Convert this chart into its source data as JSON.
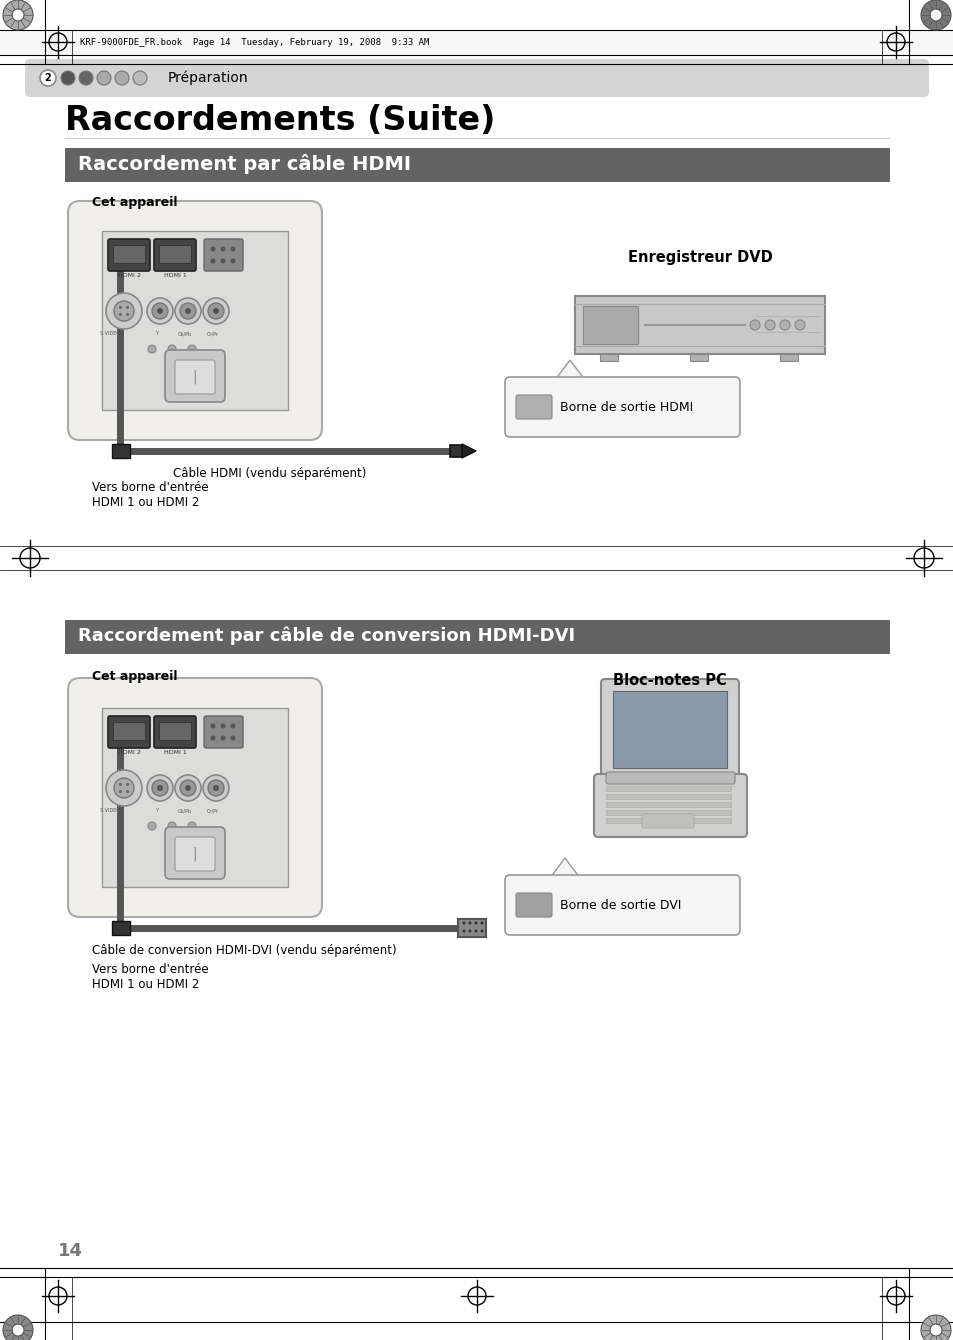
{
  "bg_color": "#ffffff",
  "header_text": "KRF-9000FDE_FR.book  Page 14  Tuesday, February 19, 2008  9:33 AM",
  "nav_text": "Préparation",
  "title": "Raccordements (Suite)",
  "section1_title": "Raccordement par câble HDMI",
  "section2_title": "Raccordement par câble de conversion HDMI-DVI",
  "label_cet_appareil1": "Cet appareil",
  "label_cet_appareil2": "Cet appareil",
  "label_dvd": "Enregistreur DVD",
  "label_pc": "Bloc-notes PC",
  "label_hdmi_cable": "Câble HDMI (vendu séparément)",
  "label_hdmi_dvi_cable": "Câble de conversion HDMI-DVI (vendu séparément)",
  "label_borne_hdmi": "Borne de sortie HDMI",
  "label_borne_dvi": "Borne de sortie DVI",
  "label_vers_borne1": "Vers borne d'entrée\nHDMI 1 ou HDMI 2",
  "label_vers_borne2": "Vers borne d'entrée\nHDMI 1 ou HDMI 2",
  "page_number": "14",
  "section1_bg": "#636363",
  "section2_bg": "#636363",
  "nav_bar_color": "#d4d4d4"
}
